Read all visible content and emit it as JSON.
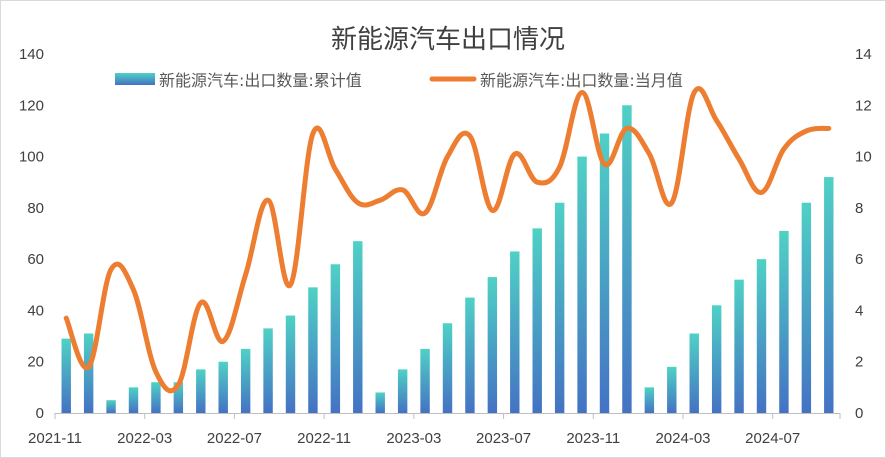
{
  "chart_data": {
    "type": "bar",
    "title": "新能源汽车出口情况",
    "xlabel": "",
    "ylabel": "",
    "x": [
      "2021-11",
      "2021-12",
      "2022-01",
      "2022-02",
      "2022-03",
      "2022-04",
      "2022-05",
      "2022-06",
      "2022-07",
      "2022-08",
      "2022-09",
      "2022-10",
      "2022-11",
      "2022-12",
      "2023-01",
      "2023-02",
      "2023-03",
      "2023-04",
      "2023-05",
      "2023-06",
      "2023-07",
      "2023-08",
      "2023-09",
      "2023-10",
      "2023-11",
      "2023-12",
      "2024-01",
      "2024-02",
      "2024-03",
      "2024-04",
      "2024-05",
      "2024-06",
      "2024-07",
      "2024-08",
      "2024-09"
    ],
    "x_tick_labels": [
      "2021-11",
      "2022-03",
      "2022-07",
      "2022-11",
      "2023-03",
      "2023-07",
      "2023-11",
      "2024-03",
      "2024-07"
    ],
    "y_left": {
      "ylim": [
        0,
        140
      ],
      "ticks": [
        "0",
        "20",
        "40",
        "60",
        "80",
        "100",
        "120",
        "140"
      ]
    },
    "y_right": {
      "ylim": [
        0,
        14
      ],
      "ticks": [
        "0",
        "2",
        "4",
        "6",
        "8",
        "10",
        "12",
        "14"
      ]
    },
    "grid": false,
    "legend_position": "top",
    "series": [
      {
        "name": "新能源汽车:出口数量:累计值",
        "type": "bar",
        "axis": "left",
        "color_top": "#4fd1c5",
        "color_bottom": "#4472c4",
        "values": [
          29,
          31,
          5,
          10,
          12,
          12,
          17,
          20,
          25,
          33,
          38,
          49,
          58,
          67,
          8,
          17,
          25,
          35,
          45,
          53,
          63,
          72,
          82,
          100,
          109,
          120,
          10,
          18,
          31,
          42,
          52,
          60,
          71,
          82,
          92
        ]
      },
      {
        "name": "新能源汽车:出口数量:当月值",
        "type": "line",
        "axis": "right",
        "color": "#ed7d31",
        "values": [
          3.7,
          1.8,
          5.6,
          4.8,
          1.6,
          1.1,
          4.3,
          2.8,
          5.4,
          8.3,
          5.0,
          10.9,
          9.5,
          8.2,
          8.3,
          8.7,
          7.8,
          10.0,
          10.8,
          7.9,
          10.1,
          9.0,
          9.6,
          12.5,
          9.7,
          11.1,
          10.1,
          8.2,
          12.5,
          11.4,
          9.9,
          8.6,
          10.3,
          11.0,
          11.1
        ]
      }
    ]
  }
}
